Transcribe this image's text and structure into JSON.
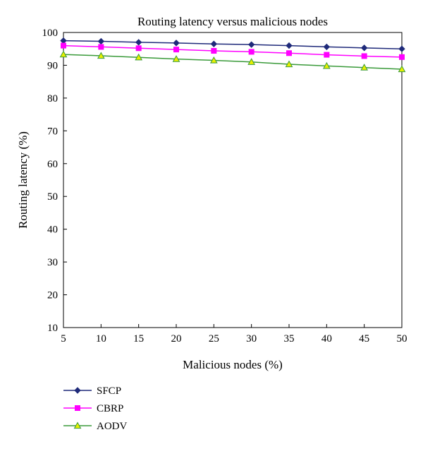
{
  "chart_data": {
    "type": "line",
    "title": "Routing latency versus malicious nodes",
    "xlabel": "Malicious nodes (%)",
    "ylabel": "Routing latency (%)",
    "x": [
      5,
      10,
      15,
      20,
      25,
      30,
      35,
      40,
      45,
      50
    ],
    "xlim": [
      5,
      50
    ],
    "ylim": [
      10,
      100
    ],
    "xticks": [
      5,
      10,
      15,
      20,
      25,
      30,
      35,
      40,
      45,
      50
    ],
    "yticks": [
      10,
      20,
      30,
      40,
      50,
      60,
      70,
      80,
      90,
      100
    ],
    "grid": false,
    "legend_position": "bottom-left",
    "series": [
      {
        "name": "SFCP",
        "color": "#1f2a7a",
        "marker": "diamond",
        "values": [
          97.5,
          97.3,
          97.0,
          96.8,
          96.5,
          96.3,
          96.0,
          95.6,
          95.3,
          95.0
        ]
      },
      {
        "name": "CBRP",
        "color": "#ff00ff",
        "marker": "square",
        "values": [
          96.0,
          95.6,
          95.2,
          94.8,
          94.4,
          94.1,
          93.7,
          93.2,
          92.8,
          92.5
        ]
      },
      {
        "name": "AODV",
        "color": "#3a9a3a",
        "marker": "triangle",
        "marker_fill": "#e8f000",
        "values": [
          93.3,
          92.9,
          92.4,
          91.9,
          91.5,
          91.0,
          90.3,
          89.8,
          89.3,
          88.8
        ]
      }
    ]
  }
}
